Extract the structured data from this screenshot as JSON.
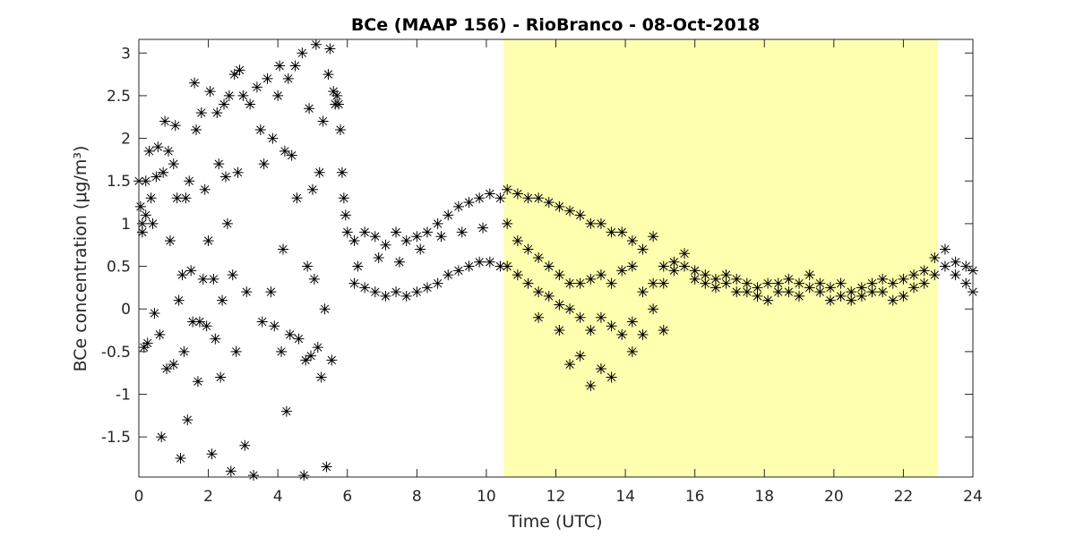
{
  "chart_data": {
    "type": "scatter",
    "title": "BCe (MAAP 156) - RioBranco - 08-Oct-2018",
    "xlabel": "Time (UTC)",
    "ylabel": "BCe concentration (μg/m³)",
    "xlim": [
      0,
      24
    ],
    "ylim": [
      -1.97,
      3.16
    ],
    "xticks": [
      0,
      2,
      4,
      6,
      8,
      10,
      12,
      14,
      16,
      18,
      20,
      22,
      24
    ],
    "yticks": [
      -1.5,
      -1,
      -0.5,
      0,
      0.5,
      1,
      1.5,
      2,
      2.5,
      3
    ],
    "marker_color": "#000000",
    "shaded_region": {
      "x": [
        10.5,
        23
      ],
      "color": "#ffffb0"
    },
    "x": [
      0,
      0.05,
      0.1,
      0.1,
      0.15,
      0.2,
      0.2,
      0.25,
      0.3,
      0.35,
      0.4,
      0.45,
      0.5,
      0.55,
      0.6,
      0.65,
      0.7,
      0.75,
      0.8,
      0.85,
      0.9,
      1,
      1,
      1.05,
      1.1,
      1.15,
      1.2,
      1.25,
      1.3,
      1.35,
      1.4,
      1.45,
      1.5,
      1.55,
      1.6,
      1.65,
      1.7,
      1.75,
      1.8,
      1.85,
      1.9,
      1.95,
      2,
      2.05,
      2.1,
      2.15,
      2.2,
      2.25,
      2.3,
      2.35,
      2.4,
      2.45,
      2.5,
      2.55,
      2.6,
      2.65,
      2.7,
      2.75,
      2.8,
      2.85,
      2.9,
      3,
      3.05,
      3.1,
      3.2,
      3.3,
      3.4,
      3.5,
      3.55,
      3.6,
      3.7,
      3.8,
      3.85,
      3.9,
      4,
      4.05,
      4.1,
      4.15,
      4.2,
      4.25,
      4.3,
      4.35,
      4.4,
      4.5,
      4.55,
      4.6,
      4.7,
      4.75,
      4.8,
      4.85,
      4.9,
      4.95,
      5,
      5.05,
      5.1,
      5.15,
      5.2,
      5.25,
      5.3,
      5.35,
      5.4,
      5.45,
      5.5,
      5.55,
      5.6,
      5.65,
      5.7,
      5.75,
      5.8,
      5.85,
      5.9,
      5.95,
      6,
      6.2,
      6.2,
      6.5,
      6.5,
      6.8,
      6.8,
      7.1,
      7.1,
      7.4,
      7.4,
      7.7,
      7.7,
      8,
      8,
      8.3,
      8.3,
      8.6,
      8.6,
      8.9,
      8.9,
      9.2,
      9.2,
      9.5,
      9.5,
      9.8,
      9.8,
      10.1,
      10.1,
      10.4,
      10.4,
      6.3,
      6.9,
      7.5,
      8.1,
      8.7,
      9.3,
      9.9,
      10.6,
      10.6,
      10.6,
      10.9,
      10.9,
      10.9,
      11.2,
      11.2,
      11.2,
      11.5,
      11.5,
      11.5,
      11.5,
      11.8,
      11.8,
      11.8,
      12.1,
      12.1,
      12.1,
      12.1,
      12.4,
      12.4,
      12.4,
      12.4,
      12.7,
      12.7,
      12.7,
      12.7,
      13,
      13,
      13,
      13,
      13.3,
      13.3,
      13.3,
      13.3,
      13.6,
      13.6,
      13.6,
      13.6,
      13.9,
      13.9,
      13.9,
      14.2,
      14.2,
      14.2,
      14.2,
      14.5,
      14.5,
      14.5,
      14.8,
      14.8,
      14.8,
      15.1,
      15.1,
      15.1,
      15.4,
      15.4,
      15.7,
      15.7,
      16,
      16,
      16.3,
      16.3,
      16.6,
      16.6,
      16.9,
      16.9,
      17.2,
      17.2,
      17.5,
      17.5,
      17.8,
      17.8,
      18.1,
      18.1,
      18.4,
      18.4,
      18.7,
      18.7,
      19,
      19,
      19.3,
      19.3,
      19.6,
      19.6,
      19.9,
      19.9,
      20.2,
      20.2,
      20.5,
      20.5,
      20.8,
      20.8,
      21.1,
      21.1,
      21.4,
      21.4,
      21.7,
      21.7,
      22,
      22,
      22.3,
      22.3,
      22.6,
      22.6,
      22.9,
      22.9,
      23.2,
      23.2,
      23.5,
      23.5,
      23.8,
      23.8,
      24,
      24
    ],
    "values": [
      1.5,
      1.2,
      1,
      0.9,
      -0.45,
      1.1,
      1.5,
      -0.4,
      1.85,
      1.3,
      1,
      -0.05,
      1.55,
      1.9,
      -0.3,
      -1.5,
      1.6,
      2.2,
      -0.7,
      1.85,
      0.8,
      -0.65,
      1.7,
      2.15,
      1.3,
      0.1,
      -1.75,
      0.4,
      -0.5,
      1.3,
      -1.3,
      1.5,
      0.45,
      -0.15,
      2.65,
      2.1,
      -0.85,
      -0.15,
      2.3,
      0.35,
      1.4,
      -0.2,
      0.8,
      2.55,
      -1.7,
      0.35,
      -0.35,
      2.3,
      1.7,
      -0.8,
      0.1,
      2.4,
      1.55,
      1,
      2.5,
      -1.9,
      0.4,
      2.75,
      -0.5,
      1.6,
      2.8,
      2.5,
      -1.6,
      0.2,
      2.4,
      -1.95,
      2.6,
      2.1,
      -0.15,
      1.7,
      2.7,
      0.2,
      2,
      -0.2,
      2.5,
      2.85,
      -0.5,
      0.7,
      1.85,
      -1.2,
      2.7,
      -0.3,
      1.8,
      2.85,
      1.3,
      -0.35,
      3,
      -1.95,
      -0.6,
      0.5,
      2.35,
      -0.55,
      1.4,
      0.35,
      3.1,
      -0.45,
      1.6,
      -0.8,
      2.2,
      0,
      -1.85,
      2.75,
      3.05,
      -0.6,
      2.55,
      2.4,
      2.5,
      2.4,
      2.1,
      1.6,
      1.3,
      1.1,
      0.9,
      0.8,
      0.3,
      0.9,
      0.25,
      0.85,
      0.2,
      0.75,
      0.15,
      0.9,
      0.2,
      0.8,
      0.15,
      0.85,
      0.2,
      0.9,
      0.25,
      1,
      0.3,
      1.1,
      0.4,
      1.2,
      0.45,
      1.25,
      0.5,
      1.3,
      0.55,
      1.35,
      0.55,
      1.3,
      0.5,
      0.5,
      0.6,
      0.55,
      0.7,
      0.85,
      0.9,
      0.95,
      1.4,
      0.5,
      1,
      1.35,
      0.4,
      0.8,
      1.3,
      0.3,
      0.7,
      1.3,
      0.2,
      0.6,
      -0.1,
      1.25,
      0.15,
      0.5,
      1.2,
      0.05,
      0.4,
      -0.25,
      1.15,
      0,
      0.3,
      -0.65,
      1.1,
      -0.1,
      0.3,
      -0.55,
      1,
      -0.25,
      0.35,
      -0.9,
      1,
      -0.1,
      0.4,
      -0.7,
      0.9,
      -0.2,
      0.3,
      -0.8,
      0.9,
      -0.3,
      0.45,
      0.8,
      -0.15,
      0.5,
      -0.5,
      0.7,
      0.2,
      -0.3,
      0.85,
      0.3,
      0,
      0.5,
      0.3,
      -0.25,
      0.55,
      0.45,
      0.65,
      0.5,
      0.45,
      0.35,
      0.4,
      0.3,
      0.35,
      0.25,
      0.4,
      0.3,
      0.35,
      0.2,
      0.3,
      0.2,
      0.25,
      0.15,
      0.3,
      0.1,
      0.3,
      0.2,
      0.35,
      0.2,
      0.3,
      0.15,
      0.4,
      0.25,
      0.3,
      0.2,
      0.25,
      0.1,
      0.3,
      0.15,
      0.2,
      0.1,
      0.25,
      0.15,
      0.3,
      0.2,
      0.35,
      0.2,
      0.3,
      0.1,
      0.35,
      0.15,
      0.4,
      0.25,
      0.45,
      0.3,
      0.6,
      0.4,
      0.7,
      0.5,
      0.55,
      0.4,
      0.5,
      0.3,
      0.45,
      0.2
    ]
  }
}
